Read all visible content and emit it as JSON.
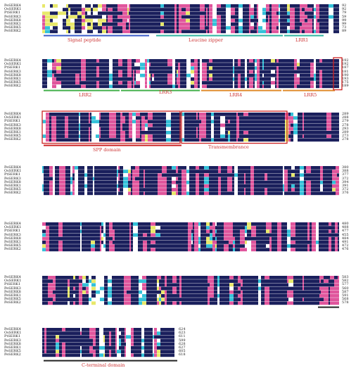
{
  "sequence_names": [
    "PeSERK4",
    "OsSERK1",
    "PtSERK1",
    "PeSERK3",
    "PeSERK8",
    "PeSERK1",
    "PeSERK5",
    "PeSERK2"
  ],
  "blocks": [
    {
      "ends": [
        "92",
        "92",
        "79",
        "59",
        "99",
        "99",
        "73",
        "89"
      ]
    },
    {
      "ends": [
        "192",
        "192",
        "187",
        "181",
        "190",
        "193",
        "175",
        "189"
      ]
    },
    {
      "ends": [
        "289",
        "288",
        "279",
        "278",
        "293",
        "289",
        "273",
        "278"
      ]
    },
    {
      "ends": [
        "380",
        "388",
        "377",
        "372",
        "394",
        "391",
        "372",
        "376"
      ]
    },
    {
      "ends": [
        "480",
        "488",
        "477",
        "455",
        "484",
        "491",
        "472",
        "476"
      ]
    },
    {
      "ends": [
        "583",
        "582",
        "577",
        "560",
        "587",
        "591",
        "568",
        "578"
      ]
    },
    {
      "ends": [
        "624",
        "623",
        "611",
        "599",
        "628",
        "627",
        "605",
        "618"
      ]
    }
  ],
  "domains": {
    "signal_peptide": "Signal peptide",
    "leucine_zipper": "Leucine zipper",
    "lrr1": "LRR1",
    "lrr2": "LRR2",
    "lrr3": "LRR3",
    "lrr4": "LRR4",
    "lrr5": "LRR5",
    "spp": "SPP domain",
    "transmembrane": "Transmembrance",
    "c_terminal": "C-terminal domain"
  },
  "colors": {
    "identical": "#1a1f5c",
    "high": "#e0559c",
    "medium": "#33c1d9",
    "low": "#e8e86a",
    "label_red": "#cc3333",
    "bar_blue": "#3a5cc9",
    "bar_teal": "#2fb3a0",
    "bar_green": "#42b04a",
    "bar_orange": "#e08a2a",
    "box_red": "#cc2222",
    "bar_black": "#222222"
  }
}
